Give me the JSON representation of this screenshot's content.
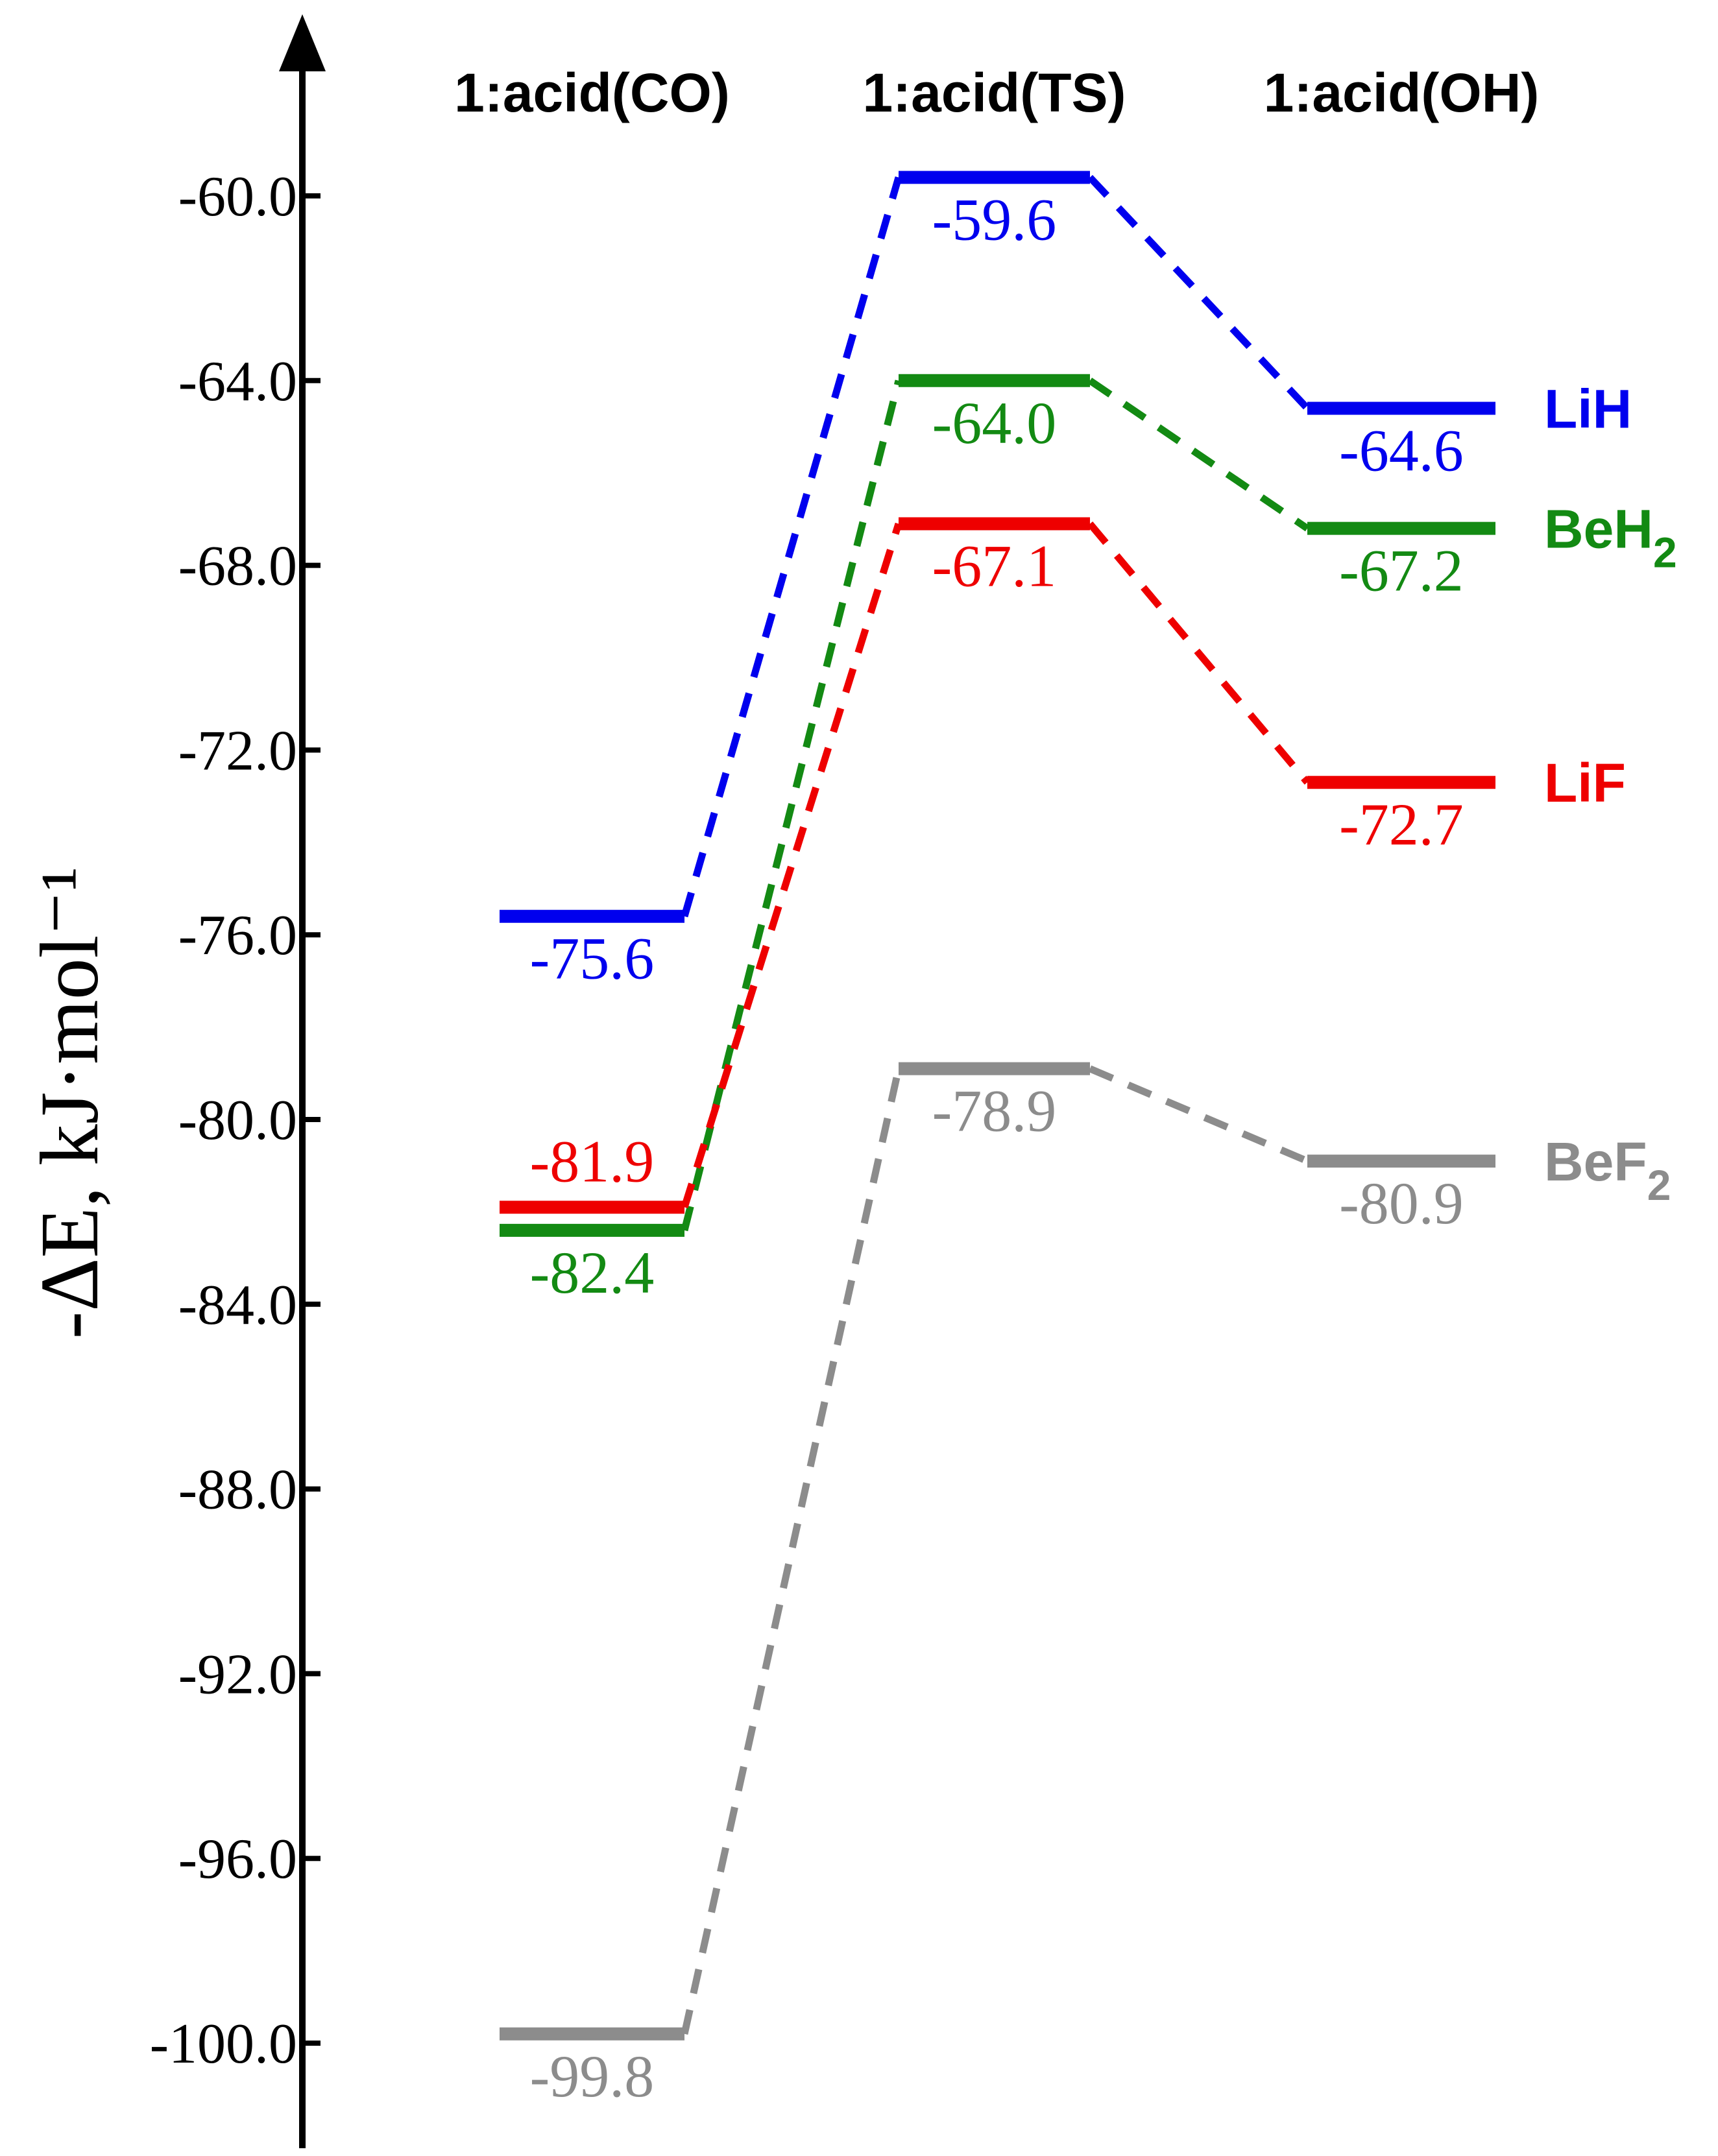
{
  "chart_data": {
    "type": "line",
    "categories": [
      "1:acid(CO)",
      "1:acid(TS)",
      "1:acid(OH)"
    ],
    "ylabel": "-ΔE, kJ·mol⁻¹",
    "ylim": [
      -102.0,
      -56.0
    ],
    "yticks": [
      "-60.0",
      "-64.0",
      "-68.0",
      "-72.0",
      "-76.0",
      "-80.0",
      "-84.0",
      "-88.0",
      "-92.0",
      "-96.0",
      "-100.0"
    ],
    "grid": false,
    "series": [
      {
        "name": "LiH",
        "label_main": "LiH",
        "label_sub": "",
        "color": "#0000ee",
        "values": [
          -75.6,
          -59.6,
          -64.6
        ],
        "labels": [
          "-75.6",
          "-59.6",
          "-64.6"
        ]
      },
      {
        "name": "BeH2",
        "label_main": "BeH",
        "label_sub": "2",
        "color": "#138a13",
        "values": [
          -82.4,
          -64.0,
          -67.2
        ],
        "labels": [
          "-82.4",
          "-64.0",
          "-67.2"
        ]
      },
      {
        "name": "LiF",
        "label_main": "LiF",
        "label_sub": "",
        "color": "#ee0000",
        "values": [
          -81.9,
          -67.1,
          -72.7
        ],
        "labels": [
          "-81.9",
          "-67.1",
          "-72.7"
        ]
      },
      {
        "name": "BeF2",
        "label_main": "BeF",
        "label_sub": "2",
        "color": "#8c8c8c",
        "values": [
          -99.8,
          -78.9,
          -80.9
        ],
        "labels": [
          "-99.8",
          "-78.9",
          "-80.9"
        ]
      }
    ]
  }
}
